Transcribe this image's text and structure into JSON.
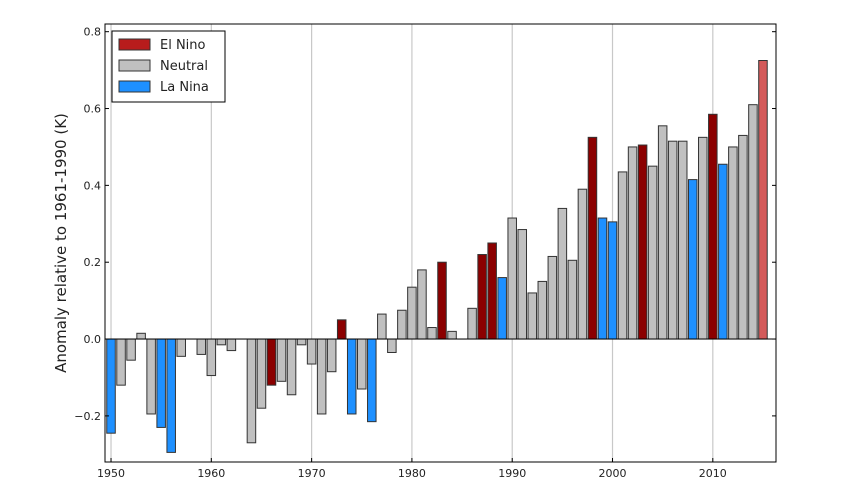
{
  "chart_data": {
    "type": "bar",
    "title": "",
    "xlabel": "",
    "ylabel": "Anomaly relative to 1961-1990 (K)",
    "xlim": [
      1949.4,
      2016.3
    ],
    "ylim": [
      -0.32,
      0.82
    ],
    "xticks": [
      1950,
      1960,
      1970,
      1980,
      1990,
      2000,
      2010
    ],
    "xtick_labels": [
      "1950",
      "1960",
      "1970",
      "1980",
      "1990",
      "2000",
      "2010"
    ],
    "yticks": [
      -0.2,
      0.0,
      0.2,
      0.4,
      0.6,
      0.8
    ],
    "ytick_labels": [
      "−0.2",
      "0.0",
      "0.2",
      "0.4",
      "0.6",
      "0.8"
    ],
    "grid": "vertical at x ticks",
    "legend": {
      "placement": "top-left",
      "entries": [
        {
          "label": "El Nino",
          "color": "#b81c1c"
        },
        {
          "label": "Neutral",
          "color": "#c0c0c0"
        },
        {
          "label": "La Nina",
          "color": "#1e90ff"
        }
      ]
    },
    "category_colors": {
      "E": "#8b0000",
      "N": "#c0c0c0",
      "L": "#1e90ff",
      "E2015": "#d45a5a"
    },
    "years": [
      1950,
      1951,
      1952,
      1953,
      1954,
      1955,
      1956,
      1957,
      1958,
      1959,
      1960,
      1961,
      1962,
      1963,
      1964,
      1965,
      1966,
      1967,
      1968,
      1969,
      1970,
      1971,
      1972,
      1973,
      1974,
      1975,
      1976,
      1977,
      1978,
      1979,
      1980,
      1981,
      1982,
      1983,
      1984,
      1985,
      1986,
      1987,
      1988,
      1989,
      1990,
      1991,
      1992,
      1993,
      1994,
      1995,
      1996,
      1997,
      1998,
      1999,
      2000,
      2001,
      2002,
      2003,
      2004,
      2005,
      2006,
      2007,
      2008,
      2009,
      2010,
      2011,
      2012,
      2013,
      2014,
      2015
    ],
    "values": [
      -0.245,
      -0.12,
      -0.055,
      0.015,
      -0.195,
      -0.23,
      -0.295,
      -0.045,
      0.0,
      -0.04,
      -0.095,
      -0.015,
      -0.03,
      0.0,
      -0.27,
      -0.18,
      -0.12,
      -0.11,
      -0.145,
      -0.015,
      -0.065,
      -0.195,
      -0.085,
      0.05,
      -0.195,
      -0.13,
      -0.215,
      0.065,
      -0.035,
      0.075,
      0.135,
      0.18,
      0.03,
      0.2,
      0.02,
      0.0,
      0.08,
      0.22,
      0.25,
      0.16,
      0.315,
      0.285,
      0.12,
      0.15,
      0.215,
      0.34,
      0.205,
      0.39,
      0.525,
      0.315,
      0.305,
      0.435,
      0.5,
      0.505,
      0.45,
      0.555,
      0.515,
      0.515,
      0.415,
      0.525,
      0.585,
      0.455,
      0.5,
      0.53,
      0.61,
      0.725
    ],
    "categories": [
      "L",
      "N",
      "N",
      "N",
      "N",
      "L",
      "L",
      "N",
      "N",
      "N",
      "N",
      "N",
      "N",
      "N",
      "N",
      "N",
      "E",
      "N",
      "N",
      "N",
      "N",
      "N",
      "N",
      "E",
      "L",
      "N",
      "L",
      "N",
      "N",
      "N",
      "N",
      "N",
      "N",
      "E",
      "N",
      "N",
      "N",
      "E",
      "E",
      "L",
      "N",
      "N",
      "N",
      "N",
      "N",
      "N",
      "N",
      "N",
      "E",
      "L",
      "L",
      "N",
      "N",
      "E",
      "N",
      "N",
      "N",
      "N",
      "L",
      "N",
      "E",
      "L",
      "N",
      "N",
      "N",
      "E2015"
    ]
  }
}
